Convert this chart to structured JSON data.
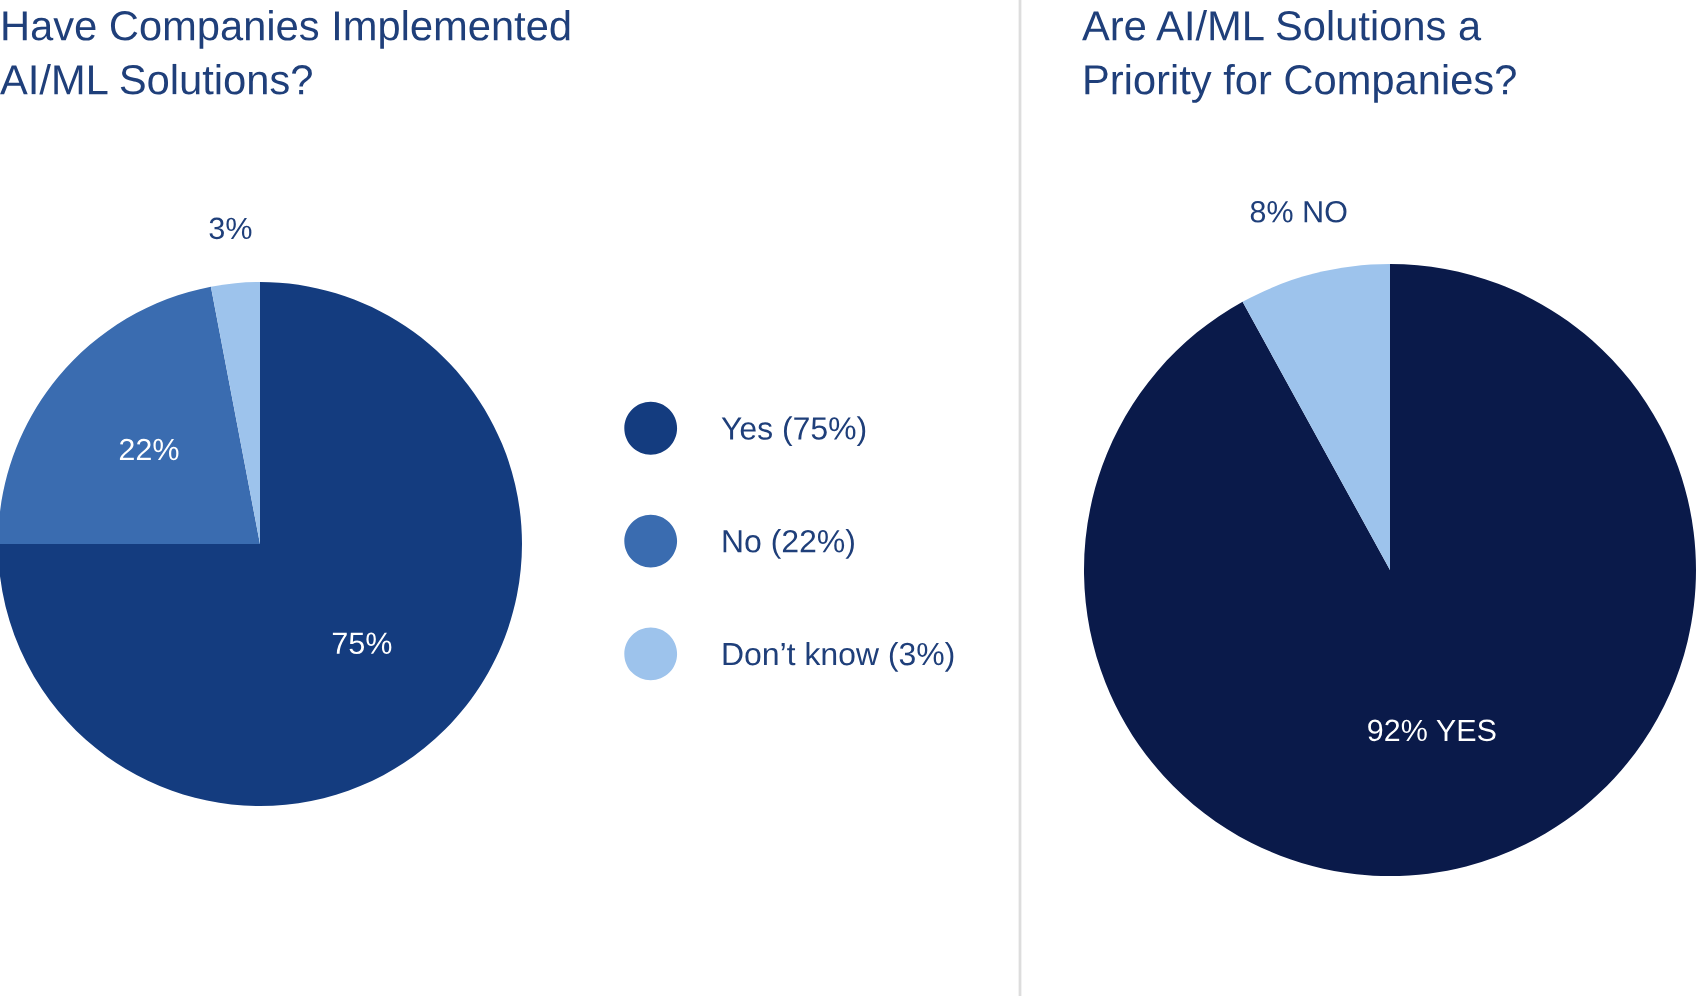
{
  "chart_data": [
    {
      "type": "pie",
      "title": "Have Companies Implemented\nAI/ML Solutions?",
      "categories": [
        "Yes (75%)",
        "No (22%)",
        "Don’t know (3%)"
      ],
      "values": [
        75,
        22,
        3
      ],
      "colors": [
        "#143c7f",
        "#3a6cb0",
        "#9dc3ec"
      ],
      "value_labels": [
        "75%",
        "22%",
        "3%"
      ],
      "legend": "right"
    },
    {
      "type": "pie",
      "title": "Are AI/ML Solutions a\nPriority for Companies?",
      "categories": [
        "YES",
        "NO"
      ],
      "values": [
        92,
        8
      ],
      "colors": [
        "#0a1a4a",
        "#9dc3ec"
      ],
      "value_labels": [
        "92%",
        "8%"
      ],
      "legend": false
    }
  ]
}
